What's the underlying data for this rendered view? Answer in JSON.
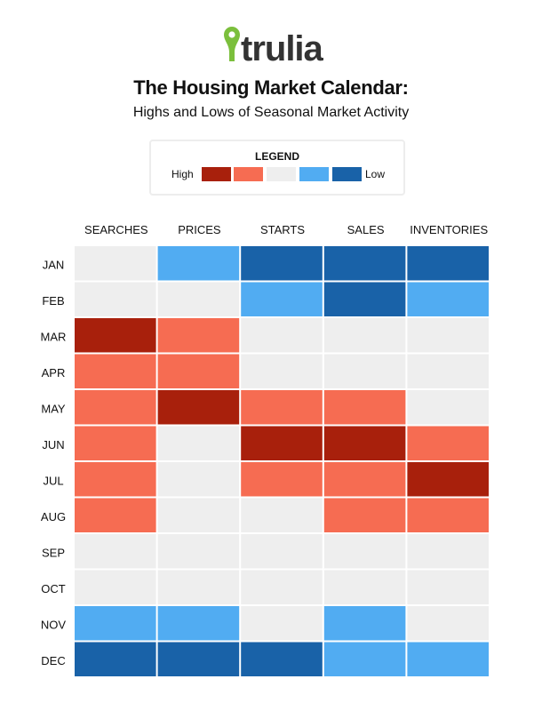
{
  "brand": {
    "name": "trulia",
    "accent": "#7bbf3c"
  },
  "header": {
    "title": "The Housing Market Calendar:",
    "subtitle": "Highs and Lows of Seasonal Market Activity"
  },
  "legend": {
    "title": "LEGEND",
    "high_label": "High",
    "low_label": "Low",
    "colors": [
      "#a8200c",
      "#f66c52",
      "#eeeeee",
      "#51acf2",
      "#1962a8"
    ]
  },
  "chart_data": {
    "type": "heatmap",
    "columns": [
      "SEARCHES",
      "PRICES",
      "STARTS",
      "SALES",
      "INVENTORIES"
    ],
    "rows": [
      "JAN",
      "FEB",
      "MAR",
      "APR",
      "MAY",
      "JUN",
      "JUL",
      "AUG",
      "SEP",
      "OCT",
      "NOV",
      "DEC"
    ],
    "scale": "1 = high, 5 = low (index into legend colors)",
    "values": [
      [
        3,
        4,
        5,
        5,
        5
      ],
      [
        3,
        3,
        4,
        5,
        4
      ],
      [
        1,
        2,
        3,
        3,
        3
      ],
      [
        2,
        2,
        3,
        3,
        3
      ],
      [
        2,
        1,
        2,
        2,
        3
      ],
      [
        2,
        3,
        1,
        1,
        2
      ],
      [
        2,
        3,
        2,
        2,
        1
      ],
      [
        2,
        3,
        3,
        2,
        2
      ],
      [
        3,
        3,
        3,
        3,
        3
      ],
      [
        3,
        3,
        3,
        3,
        3
      ],
      [
        4,
        4,
        3,
        4,
        3
      ],
      [
        5,
        5,
        5,
        4,
        4
      ]
    ]
  }
}
